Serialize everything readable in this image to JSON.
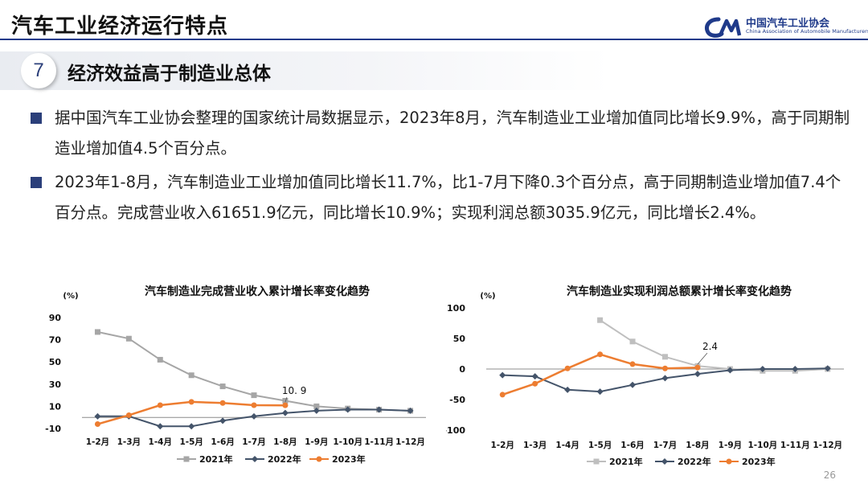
{
  "header": {
    "title": "汽车工业经济运行特点",
    "logo_cn": "中国汽车工业协会",
    "logo_en": "China Association of Automobile Manufacturers"
  },
  "section": {
    "number": "7",
    "title": "经济效益高于制造业总体"
  },
  "bullets": [
    {
      "text": "据中国汽车工业协会整理的国家统计局数据显示，2023年8月，汽车制造业工业增加值同比增长9.9%，高于同期制造业增加值4.5个百分点。"
    },
    {
      "text": "2023年1-8月，汽车制造业工业增加值同比增长11.7%，比1-7月下降0.3个百分点，高于同期制造业增加值7.4个百分点。完成营业收入61651.9亿元，同比增长10.9%；实现利润总额3035.9亿元，同比增长2.4%。"
    }
  ],
  "page_number": "26",
  "colors": {
    "navy": "#1f3a8a",
    "c2021": "#a6a6a6",
    "c2022": "#44546a",
    "c2023": "#ed7d31"
  },
  "chart_data": [
    {
      "type": "line",
      "title": "汽车制造业完成营业收入累计增长率变化趋势",
      "ylabel": "(%)",
      "ylim": [
        -10,
        90
      ],
      "yticks": [
        -10,
        10,
        30,
        50,
        70,
        90
      ],
      "categories": [
        "1-2月",
        "1-3月",
        "1-4月",
        "1-5月",
        "1-6月",
        "1-7月",
        "1-8月",
        "1-9月",
        "1-10月",
        "1-11月",
        "1-12月"
      ],
      "series": [
        {
          "name": "2021年",
          "color": "#a6a6a6",
          "marker": "square",
          "values": [
            77,
            71,
            52,
            38,
            28,
            20,
            15,
            10,
            8,
            7,
            6
          ]
        },
        {
          "name": "2022年",
          "color": "#44546a",
          "marker": "diamond",
          "values": [
            1,
            1,
            -8,
            -8,
            -3,
            1,
            4,
            6,
            7,
            7,
            6
          ]
        },
        {
          "name": "2023年",
          "color": "#ed7d31",
          "marker": "circle",
          "values": [
            -6,
            2,
            11,
            14,
            13,
            11,
            10.9,
            null,
            null,
            null,
            null
          ]
        }
      ],
      "annotation": {
        "text": "10. 9"
      }
    },
    {
      "type": "line",
      "title": "汽车制造业实现利润总额累计增长率变化趋势",
      "ylabel": "(%)",
      "ylim": [
        -100,
        100
      ],
      "yticks": [
        -100,
        -50,
        0,
        50,
        100
      ],
      "categories": [
        "1-2月",
        "1-3月",
        "1-4月",
        "1-5月",
        "1-6月",
        "1-7月",
        "1-8月",
        "1-9月",
        "1-10月",
        "1-11月",
        "1-12月"
      ],
      "series": [
        {
          "name": "2021年",
          "color": "#bfbfbf",
          "marker": "square",
          "values": [
            null,
            null,
            null,
            80,
            45,
            20,
            5,
            0,
            -3,
            -3,
            0
          ]
        },
        {
          "name": "2022年",
          "color": "#44546a",
          "marker": "diamond",
          "values": [
            -10,
            -12,
            -34,
            -37,
            -26,
            -15,
            -8,
            -2,
            0,
            0,
            1
          ]
        },
        {
          "name": "2023年",
          "color": "#ed7d31",
          "marker": "circle",
          "values": [
            -42,
            -24,
            1,
            24,
            8,
            1,
            2.4,
            null,
            null,
            null,
            null
          ]
        }
      ],
      "annotation": {
        "text": "2.4"
      }
    }
  ]
}
